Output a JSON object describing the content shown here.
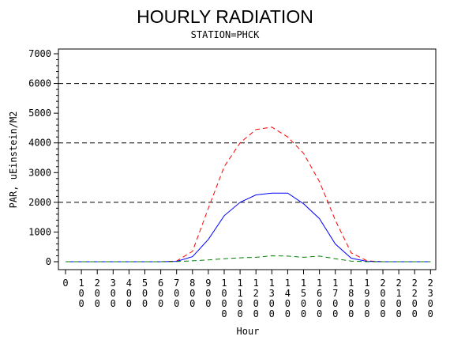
{
  "chart_data": {
    "type": "line",
    "title": "HOURLY RADIATION",
    "subtitle": "STATION=PHCK",
    "xlabel": "Hour",
    "ylabel": "PAR, uEinstein/M2",
    "ylim": [
      0,
      7000
    ],
    "yticks": [
      0,
      1000,
      2000,
      3000,
      4000,
      5000,
      6000,
      7000
    ],
    "reference_lines": [
      2000,
      4000,
      6000
    ],
    "x": [
      0,
      100,
      200,
      300,
      400,
      500,
      600,
      700,
      800,
      900,
      1000,
      1100,
      1200,
      1300,
      1400,
      1500,
      1600,
      1700,
      1800,
      1900,
      2000,
      2100,
      2200,
      2300
    ],
    "xtick_labels": [
      "0",
      "100",
      "200",
      "300",
      "400",
      "500",
      "600",
      "700",
      "800",
      "900",
      "1000",
      "1100",
      "1200",
      "1300",
      "1400",
      "1500",
      "1600",
      "1700",
      "1800",
      "1900",
      "2000",
      "2100",
      "2200",
      "2300"
    ],
    "series": [
      {
        "style": "dashed",
        "color": "#ff0000",
        "values": [
          0,
          0,
          0,
          0,
          0,
          0,
          0,
          20,
          350,
          1800,
          3200,
          4000,
          4450,
          4530,
          4200,
          3650,
          2700,
          1400,
          300,
          30,
          0,
          0,
          0,
          0
        ]
      },
      {
        "style": "solid",
        "color": "#0000ff",
        "values": [
          0,
          0,
          0,
          0,
          0,
          0,
          0,
          10,
          170,
          750,
          1550,
          2000,
          2250,
          2310,
          2310,
          1950,
          1450,
          600,
          120,
          10,
          0,
          0,
          0,
          0
        ]
      },
      {
        "style": "dashed",
        "color": "#008000",
        "values": [
          0,
          0,
          0,
          0,
          0,
          0,
          0,
          5,
          30,
          60,
          100,
          130,
          150,
          200,
          190,
          150,
          190,
          100,
          20,
          0,
          0,
          0,
          0,
          0
        ]
      }
    ],
    "grid": false
  }
}
